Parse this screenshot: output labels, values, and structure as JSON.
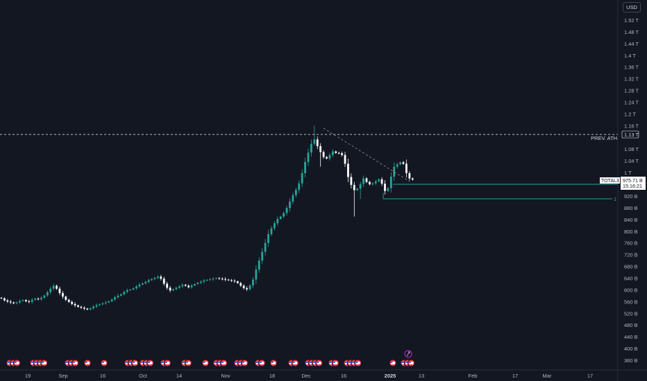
{
  "currency": "USD",
  "y_axis": {
    "ticks": [
      "1.52 T",
      "1.48 T",
      "1.44 T",
      "1.4 T",
      "1.36 T",
      "1.32 T",
      "1.28 T",
      "1.24 T",
      "1.2 T",
      "1.16 T",
      "1.08 T",
      "1.04 T",
      "1 T",
      "920 B",
      "880 B",
      "840 B",
      "800 B",
      "760 B",
      "720 B",
      "680 B",
      "640 B",
      "600 B",
      "560 B",
      "520 B",
      "480 B",
      "440 B",
      "400 B",
      "360 B"
    ]
  },
  "x_axis": {
    "ticks": [
      {
        "label": "19",
        "bold": false
      },
      {
        "label": "Sep",
        "bold": false
      },
      {
        "label": "16",
        "bold": false
      },
      {
        "label": "Oct",
        "bold": false
      },
      {
        "label": "14",
        "bold": false
      },
      {
        "label": "Nov",
        "bold": false
      },
      {
        "label": "18",
        "bold": false
      },
      {
        "label": "Dec",
        "bold": false
      },
      {
        "label": "16",
        "bold": false
      },
      {
        "label": "2025",
        "bold": true
      },
      {
        "label": "13",
        "bold": false
      },
      {
        "label": "Feb",
        "bold": false
      },
      {
        "label": "17",
        "bold": false
      },
      {
        "label": "Mar",
        "bold": false
      },
      {
        "label": "17",
        "bold": false
      }
    ]
  },
  "prev_ath": {
    "label": "PREV. ATH",
    "value_label": "1.13 T",
    "value_b": 1130
  },
  "price_box": {
    "symbol": "TOTAL3",
    "price": "975.71 B",
    "countdown": "15:16:21"
  },
  "support_marker": "1",
  "colors": {
    "up": "#26a69a",
    "down": "#ffffff",
    "bg": "#131722",
    "line": "#26a69a"
  },
  "chart_data": {
    "type": "candlestick",
    "series": [
      {
        "name": "TOTAL3",
        "unit": "B USD",
        "close": [
          571,
          564,
          560,
          557,
          554,
          557,
          562,
          565,
          561,
          559,
          566,
          570,
          568,
          573,
          581,
          592,
          604,
          614,
          604,
          589,
          577,
          566,
          559,
          552,
          547,
          542,
          539,
          536,
          533,
          537,
          543,
          548,
          551,
          554,
          557,
          561,
          567,
          575,
          580,
          585,
          593,
          599,
          601,
          605,
          612,
          618,
          622,
          627,
          633,
          637,
          641,
          645,
          638,
          621,
          607,
          598,
          602,
          607,
          612,
          617,
          614,
          609,
          615,
          620,
          624,
          628,
          632,
          634,
          636,
          638,
          640,
          638,
          637,
          635,
          633,
          631,
          629,
          623,
          614,
          606,
          602,
          615,
          635,
          669,
          700,
          730,
          760,
          790,
          810,
          827,
          842,
          850,
          862,
          879,
          901,
          923,
          941,
          963,
          998,
          1036,
          1068,
          1098,
          1113,
          1090,
          1070,
          1053,
          1048,
          1060,
          1072,
          1067,
          1066,
          1060,
          1030,
          985,
          958,
          940,
          945,
          961,
          980,
          968,
          960,
          963,
          970,
          977,
          962,
          937,
          947,
          986,
          1020,
          1028,
          1035,
          1030,
          998,
          980,
          976
        ]
      }
    ],
    "annotations": [
      "PREV. ATH",
      "1.13 T",
      "TOTAL3",
      "975.71 B",
      "15:16:21",
      "1"
    ],
    "ylim": [
      340,
      1540
    ],
    "grid": false,
    "legend": "none"
  },
  "events": {
    "flags_count": 48
  }
}
